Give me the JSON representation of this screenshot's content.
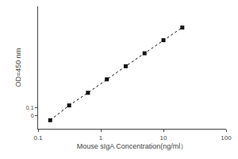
{
  "chart_data": {
    "type": "line",
    "xlabel": "Mouse sIgA Concentration(ng/ml）",
    "ylabel": "OD=450 nm",
    "x": [
      0.156,
      0.313,
      0.625,
      1.25,
      2.5,
      5.0,
      10.0,
      20.0
    ],
    "values": [
      0.058,
      0.11,
      0.19,
      0.34,
      0.6,
      1.05,
      1.85,
      3.2
    ],
    "log": true,
    "xlim": [
      0.1,
      100
    ],
    "ylim": [
      0.04,
      8
    ],
    "xticks": [
      0.1,
      1,
      10,
      100
    ],
    "yticks": [
      {
        "value": 0.07,
        "label": "0"
      },
      0.1
    ],
    "grid": false,
    "color": "#111111",
    "marker": "square",
    "line_style": "dotted"
  }
}
